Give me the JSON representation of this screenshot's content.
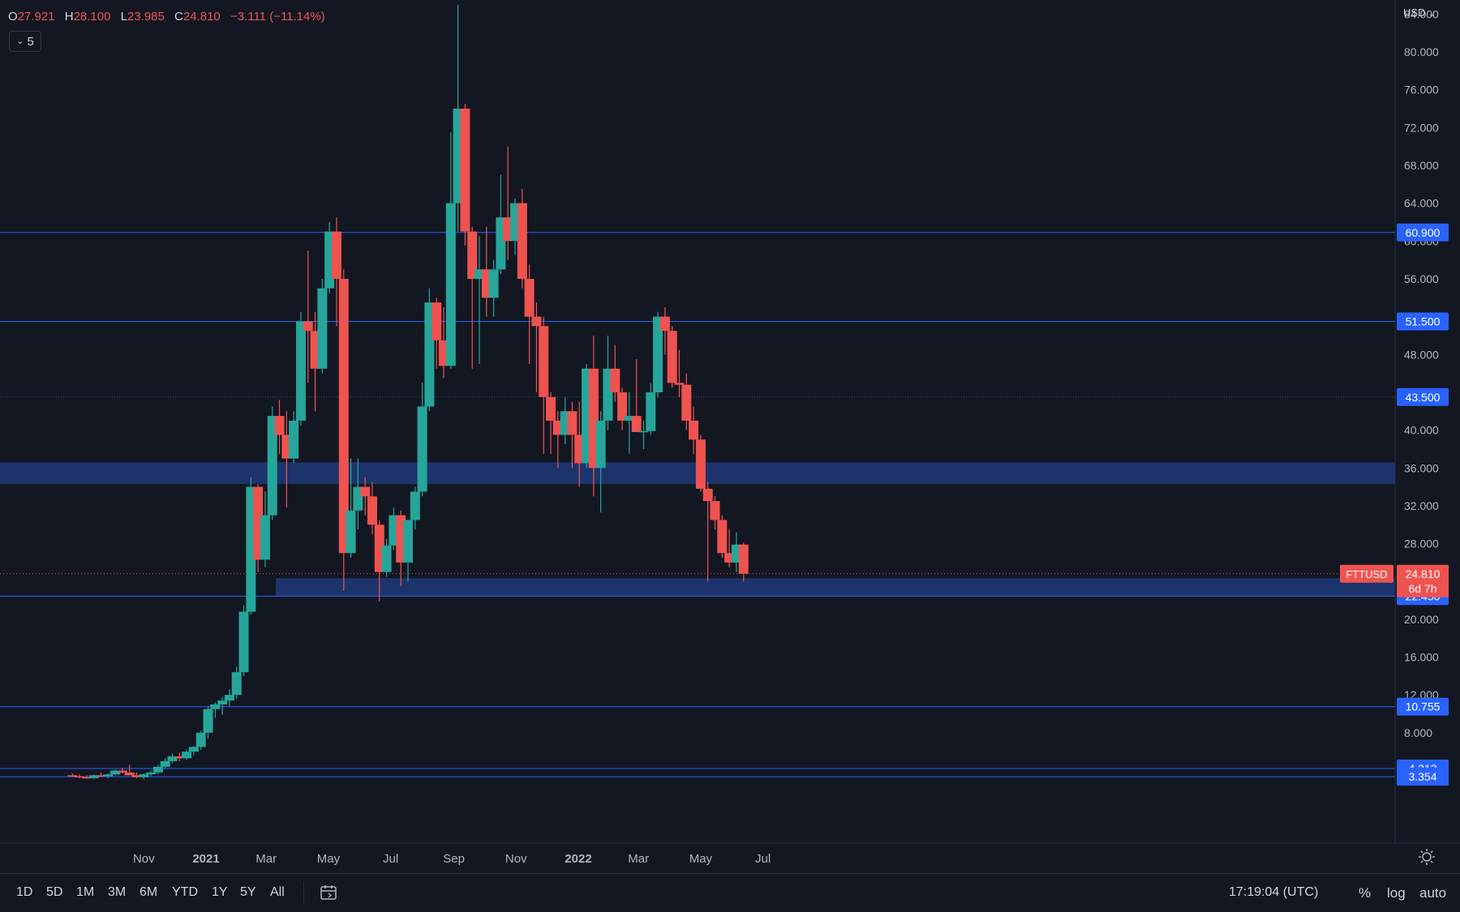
{
  "header": {
    "o_label": "O",
    "o_value": "27.921",
    "h_label": "H",
    "h_value": "28.100",
    "l_label": "L",
    "l_value": "23.985",
    "c_label": "C",
    "c_value": "24.810",
    "change": "−3.111 (−11.14%)",
    "indicator_count": "5",
    "currency": "USD"
  },
  "bottom_bar": {
    "ranges": [
      "1D",
      "5D",
      "1M",
      "3M",
      "6M",
      "YTD",
      "1Y",
      "5Y",
      "All"
    ],
    "clock": "17:19:04 (UTC)",
    "percent_label": "%",
    "log_label": "log",
    "auto_label": "auto"
  },
  "colors": {
    "background": "#131722",
    "up": "#26a69a",
    "down": "#ef5350",
    "hline": "#2962ff",
    "zone": "#1e3a78",
    "price_tag": "#2962ff"
  },
  "chart_data": {
    "type": "candlestick",
    "interval": "1W",
    "symbol_tag": "FTTUSD",
    "countdown": "6d 7h",
    "last_price": 24.81,
    "ylim": [
      0,
      88
    ],
    "y_ticks": [
      "8.000",
      "12.000",
      "16.000",
      "20.000",
      "24.000",
      "28.000",
      "32.000",
      "36.000",
      "40.000",
      "44.000",
      "48.000",
      "52.000",
      "56.000",
      "60.000",
      "64.000",
      "68.000",
      "72.000",
      "76.000",
      "80.000",
      "84.000"
    ],
    "x_ticks": [
      {
        "label": "Nov",
        "date": "2020-11-01",
        "bold": false
      },
      {
        "label": "2021",
        "date": "2021-01-01",
        "bold": true
      },
      {
        "label": "Mar",
        "date": "2021-03-01",
        "bold": false
      },
      {
        "label": "May",
        "date": "2021-05-01",
        "bold": false
      },
      {
        "label": "Jul",
        "date": "2021-07-01",
        "bold": false
      },
      {
        "label": "Sep",
        "date": "2021-09-01",
        "bold": false
      },
      {
        "label": "Nov",
        "date": "2021-11-01",
        "bold": false
      },
      {
        "label": "2022",
        "date": "2022-01-01",
        "bold": true
      },
      {
        "label": "Mar",
        "date": "2022-03-01",
        "bold": false
      },
      {
        "label": "May",
        "date": "2022-05-01",
        "bold": false
      },
      {
        "label": "Jul",
        "date": "2022-07-01",
        "bold": false
      }
    ],
    "horizontal_levels": [
      {
        "label": "60.900",
        "value": 60.9
      },
      {
        "label": "51.500",
        "value": 51.5
      },
      {
        "label": "43.500",
        "value": 43.5,
        "dotted": true
      },
      {
        "label": "22.450",
        "value": 22.45
      },
      {
        "label": "10.755",
        "value": 10.755
      },
      {
        "label": "4.213",
        "value": 4.213
      },
      {
        "label": "3.354",
        "value": 3.354
      }
    ],
    "zones": [
      {
        "low": 34.3,
        "high": 36.6
      },
      {
        "low": 22.45,
        "high": 24.35
      }
    ],
    "candles": [
      [
        "2020-08-23",
        3.5,
        3.7,
        3.3,
        3.4
      ],
      [
        "2020-08-30",
        3.4,
        3.6,
        3.2,
        3.3
      ],
      [
        "2020-09-06",
        3.3,
        3.5,
        3.1,
        3.2
      ],
      [
        "2020-09-13",
        3.2,
        3.6,
        3.1,
        3.5
      ],
      [
        "2020-09-20",
        3.5,
        3.8,
        3.3,
        3.4
      ],
      [
        "2020-09-27",
        3.4,
        3.7,
        3.2,
        3.6
      ],
      [
        "2020-10-04",
        3.6,
        4.1,
        3.5,
        4.0
      ],
      [
        "2020-10-11",
        4.0,
        4.3,
        3.7,
        3.8
      ],
      [
        "2020-10-18",
        3.8,
        4.6,
        3.6,
        3.5
      ],
      [
        "2020-10-25",
        3.5,
        3.8,
        3.2,
        3.3
      ],
      [
        "2020-11-01",
        3.3,
        3.7,
        3.1,
        3.6
      ],
      [
        "2020-11-08",
        3.6,
        4.0,
        3.4,
        3.8
      ],
      [
        "2020-11-15",
        3.8,
        4.6,
        3.6,
        4.4
      ],
      [
        "2020-11-22",
        4.4,
        5.3,
        4.2,
        5.0
      ],
      [
        "2020-11-29",
        5.0,
        5.8,
        4.8,
        5.5
      ],
      [
        "2020-12-06",
        5.5,
        5.9,
        5.0,
        5.3
      ],
      [
        "2020-12-13",
        5.3,
        6.2,
        5.1,
        6.0
      ],
      [
        "2020-12-20",
        6.0,
        6.6,
        5.6,
        6.5
      ],
      [
        "2020-12-27",
        6.5,
        8.2,
        6.2,
        8.0
      ],
      [
        "2021-01-03",
        8.0,
        10.8,
        7.4,
        10.5
      ],
      [
        "2021-01-10",
        10.5,
        11.2,
        9.6,
        11.0
      ],
      [
        "2021-01-17",
        11.0,
        11.8,
        9.9,
        11.4
      ],
      [
        "2021-01-24",
        11.4,
        12.6,
        10.8,
        12.0
      ],
      [
        "2021-01-31",
        12.0,
        15.0,
        11.6,
        14.4
      ],
      [
        "2021-02-07",
        14.4,
        21.5,
        14.0,
        20.8
      ],
      [
        "2021-02-14",
        20.8,
        35.0,
        20.5,
        34.0
      ],
      [
        "2021-02-21",
        34.0,
        34.3,
        25.0,
        26.3
      ],
      [
        "2021-02-28",
        26.3,
        33.5,
        25.5,
        31.0
      ],
      [
        "2021-03-07",
        31.0,
        42.5,
        30.5,
        41.5
      ],
      [
        "2021-03-14",
        41.5,
        43.2,
        37.5,
        39.5
      ],
      [
        "2021-03-21",
        39.5,
        42.0,
        31.8,
        37.0
      ],
      [
        "2021-03-28",
        37.0,
        42.0,
        36.5,
        41.0
      ],
      [
        "2021-04-04",
        41.0,
        52.5,
        40.5,
        51.5
      ],
      [
        "2021-04-11",
        51.5,
        59.0,
        45.0,
        50.5
      ],
      [
        "2021-04-18",
        50.5,
        52.5,
        42.0,
        46.5
      ],
      [
        "2021-04-25",
        46.5,
        56.0,
        46.0,
        55.0
      ],
      [
        "2021-05-02",
        55.0,
        62.0,
        54.5,
        61.0
      ],
      [
        "2021-05-09",
        61.0,
        62.5,
        51.0,
        56.0
      ],
      [
        "2021-05-16",
        56.0,
        57.0,
        23.0,
        27.0
      ],
      [
        "2021-05-23",
        27.0,
        37.0,
        26.5,
        31.5
      ],
      [
        "2021-05-30",
        31.5,
        37.0,
        29.5,
        34.0
      ],
      [
        "2021-06-06",
        34.0,
        35.0,
        31.0,
        33.0
      ],
      [
        "2021-06-13",
        33.0,
        34.5,
        29.0,
        30.0
      ],
      [
        "2021-06-20",
        30.0,
        30.5,
        21.9,
        25.0
      ],
      [
        "2021-06-27",
        25.0,
        28.5,
        24.5,
        27.8
      ],
      [
        "2021-07-04",
        27.8,
        31.8,
        27.3,
        31.0
      ],
      [
        "2021-07-11",
        31.0,
        31.5,
        23.5,
        26.0
      ],
      [
        "2021-07-18",
        26.0,
        30.5,
        24.0,
        30.5
      ],
      [
        "2021-07-25",
        30.5,
        34.0,
        29.5,
        33.5
      ],
      [
        "2021-08-01",
        33.5,
        45.0,
        33.0,
        42.5
      ],
      [
        "2021-08-08",
        42.5,
        55.0,
        42.0,
        53.5
      ],
      [
        "2021-08-15",
        53.5,
        54.0,
        46.5,
        49.5
      ],
      [
        "2021-08-22",
        49.5,
        53.0,
        45.5,
        46.8
      ],
      [
        "2021-08-29",
        46.8,
        71.5,
        46.5,
        64.0
      ],
      [
        "2021-09-05",
        64.0,
        85.0,
        61.0,
        74.0
      ],
      [
        "2021-09-12",
        74.0,
        74.5,
        59.5,
        61.0
      ],
      [
        "2021-09-19",
        61.0,
        61.5,
        46.5,
        56.0
      ],
      [
        "2021-09-26",
        56.0,
        60.5,
        47.0,
        57.0
      ],
      [
        "2021-10-03",
        57.0,
        61.5,
        52.0,
        54.0
      ],
      [
        "2021-10-10",
        54.0,
        58.0,
        52.0,
        57.0
      ],
      [
        "2021-10-17",
        57.0,
        67.0,
        56.5,
        62.5
      ],
      [
        "2021-10-24",
        62.5,
        70.0,
        58.0,
        60.0
      ],
      [
        "2021-10-31",
        60.0,
        64.5,
        58.5,
        64.0
      ],
      [
        "2021-11-07",
        64.0,
        65.5,
        55.0,
        56.0
      ],
      [
        "2021-11-14",
        56.0,
        57.5,
        47.0,
        52.0
      ],
      [
        "2021-11-21",
        52.0,
        53.5,
        44.0,
        51.0
      ],
      [
        "2021-11-28",
        51.0,
        52.0,
        37.5,
        43.5
      ],
      [
        "2021-12-05",
        43.5,
        44.0,
        37.5,
        41.0
      ],
      [
        "2021-12-12",
        41.0,
        42.0,
        36.0,
        39.5
      ],
      [
        "2021-12-19",
        39.5,
        43.5,
        38.5,
        42.0
      ],
      [
        "2021-12-26",
        42.0,
        43.0,
        36.0,
        39.5
      ],
      [
        "2022-01-02",
        39.5,
        43.0,
        34.0,
        36.5
      ],
      [
        "2022-01-09",
        36.5,
        47.0,
        36.0,
        46.5
      ],
      [
        "2022-01-16",
        46.5,
        50.0,
        33.0,
        36.0
      ],
      [
        "2022-01-23",
        36.0,
        42.0,
        31.3,
        41.0
      ],
      [
        "2022-01-30",
        41.0,
        50.0,
        40.0,
        46.5
      ],
      [
        "2022-02-06",
        46.5,
        49.0,
        43.0,
        44.0
      ],
      [
        "2022-02-13",
        44.0,
        44.5,
        40.0,
        41.0
      ],
      [
        "2022-02-20",
        41.0,
        44.0,
        37.5,
        41.5
      ],
      [
        "2022-02-27",
        41.5,
        47.5,
        40.0,
        39.8
      ],
      [
        "2022-03-06",
        39.8,
        41.0,
        38.0,
        39.9
      ],
      [
        "2022-03-13",
        39.9,
        45.0,
        39.5,
        44.0
      ],
      [
        "2022-03-20",
        44.0,
        52.5,
        43.5,
        52.0
      ],
      [
        "2022-03-27",
        52.0,
        53.0,
        48.0,
        50.5
      ],
      [
        "2022-04-03",
        50.5,
        51.0,
        44.5,
        45.0
      ],
      [
        "2022-04-10",
        45.0,
        48.5,
        43.5,
        44.8
      ],
      [
        "2022-04-17",
        44.8,
        46.0,
        40.0,
        41.0
      ],
      [
        "2022-04-24",
        41.0,
        42.5,
        37.5,
        39.0
      ],
      [
        "2022-05-01",
        39.0,
        39.5,
        33.5,
        33.8
      ],
      [
        "2022-05-08",
        33.8,
        34.5,
        24.0,
        32.5
      ],
      [
        "2022-05-15",
        32.5,
        33.0,
        29.5,
        30.5
      ],
      [
        "2022-05-22",
        30.5,
        31.0,
        26.5,
        27.0
      ],
      [
        "2022-05-29",
        27.0,
        29.5,
        25.5,
        26.0
      ],
      [
        "2022-06-05",
        26.0,
        29.2,
        25.0,
        27.9
      ],
      [
        "2022-06-12",
        27.9,
        28.1,
        23.985,
        24.81
      ]
    ]
  }
}
